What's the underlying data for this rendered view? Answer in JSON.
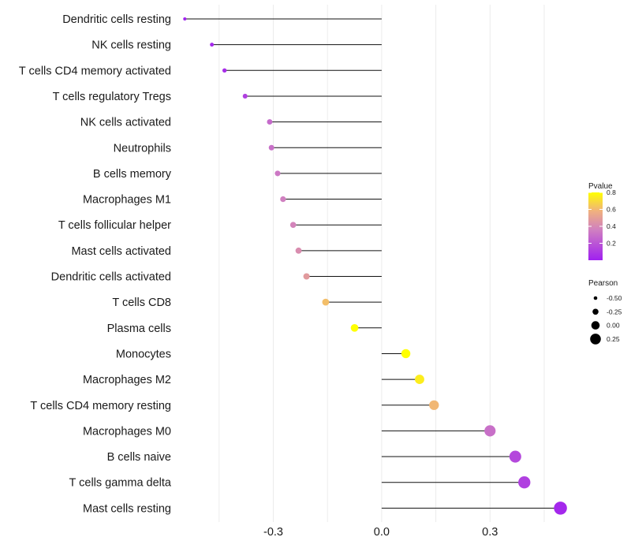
{
  "chart_data": {
    "type": "lollipop",
    "title": "",
    "xlabel": "",
    "ylabel": "",
    "xlim": [
      -0.55,
      0.52
    ],
    "x_ticks": [
      -0.3,
      0.0,
      0.3
    ],
    "x_tick_labels": [
      "-0.3",
      "0.0",
      "0.3"
    ],
    "grid": true,
    "rows": [
      {
        "label": "Dendritic cells resting",
        "pearson": -0.545,
        "pvalue": 0.01
      },
      {
        "label": "NK cells resting",
        "pearson": -0.47,
        "pvalue": 0.03
      },
      {
        "label": "T cells CD4 memory activated",
        "pearson": -0.435,
        "pvalue": 0.05
      },
      {
        "label": "T cells regulatory  Tregs ",
        "pearson": -0.378,
        "pvalue": 0.12
      },
      {
        "label": "NK cells activated",
        "pearson": -0.31,
        "pvalue": 0.28
      },
      {
        "label": "Neutrophils",
        "pearson": -0.305,
        "pvalue": 0.3
      },
      {
        "label": "B cells memory",
        "pearson": -0.288,
        "pvalue": 0.33
      },
      {
        "label": "Macrophages M1",
        "pearson": -0.273,
        "pvalue": 0.36
      },
      {
        "label": "T cells follicular helper",
        "pearson": -0.245,
        "pvalue": 0.38
      },
      {
        "label": "Mast cells activated",
        "pearson": -0.23,
        "pvalue": 0.42
      },
      {
        "label": "Dendritic cells activated",
        "pearson": -0.208,
        "pvalue": 0.48
      },
      {
        "label": "T cells CD8",
        "pearson": -0.155,
        "pvalue": 0.62
      },
      {
        "label": "Plasma cells",
        "pearson": -0.075,
        "pvalue": 0.82
      },
      {
        "label": "Monocytes",
        "pearson": 0.067,
        "pvalue": 0.8
      },
      {
        "label": "Macrophages M2",
        "pearson": 0.105,
        "pvalue": 0.75
      },
      {
        "label": "T cells CD4 memory resting",
        "pearson": 0.145,
        "pvalue": 0.6
      },
      {
        "label": "Macrophages M0",
        "pearson": 0.3,
        "pvalue": 0.3
      },
      {
        "label": "B cells naive",
        "pearson": 0.37,
        "pvalue": 0.15
      },
      {
        "label": "T cells gamma delta",
        "pearson": 0.395,
        "pvalue": 0.12
      },
      {
        "label": "Mast cells resting",
        "pearson": 0.495,
        "pvalue": 0.03
      }
    ],
    "legends": {
      "color": {
        "title": "Pvalue",
        "range": [
          0.0,
          0.8
        ],
        "ticks": [
          "0.2",
          "0.4",
          "0.6",
          "0.8"
        ],
        "tick_values": [
          0.2,
          0.4,
          0.6,
          0.8
        ],
        "low_color": "#a020f0",
        "mid_color": "#d080c0",
        "high_color": "#ffff00"
      },
      "size": {
        "title": "Pearson",
        "entries": [
          "-0.50",
          "-0.25",
          "0.00",
          "0.25"
        ],
        "values": [
          -0.5,
          -0.25,
          0.0,
          0.25
        ]
      }
    }
  }
}
